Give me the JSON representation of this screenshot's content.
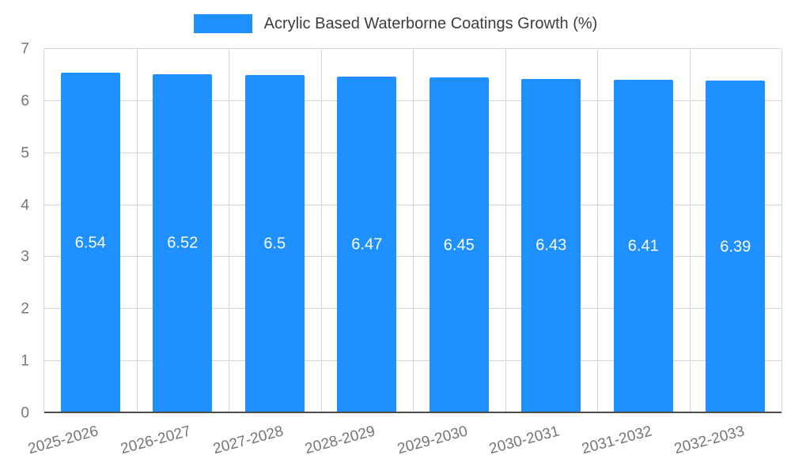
{
  "legend": {
    "label": "Acrylic Based Waterborne Coatings Growth (%)"
  },
  "chart_data": {
    "type": "bar",
    "title": "Acrylic Based Waterborne Coatings Growth (%)",
    "categories": [
      "2025-2026",
      "2026-2027",
      "2027-2028",
      "2028-2029",
      "2029-2030",
      "2030-2031",
      "2031-2032",
      "2032-2033"
    ],
    "values": [
      6.54,
      6.52,
      6.5,
      6.47,
      6.45,
      6.43,
      6.41,
      6.39
    ],
    "value_labels": [
      "6.54",
      "6.52",
      "6.5",
      "6.47",
      "6.45",
      "6.43",
      "6.41",
      "6.39"
    ],
    "xlabel": "",
    "ylabel": "",
    "ylim": [
      0,
      7
    ],
    "yticks": [
      0,
      1,
      2,
      3,
      4,
      5,
      6,
      7
    ],
    "bar_color": "#1E90FF",
    "value_label_color": "#FFFFFF",
    "grid": true,
    "legend_position": "top"
  }
}
